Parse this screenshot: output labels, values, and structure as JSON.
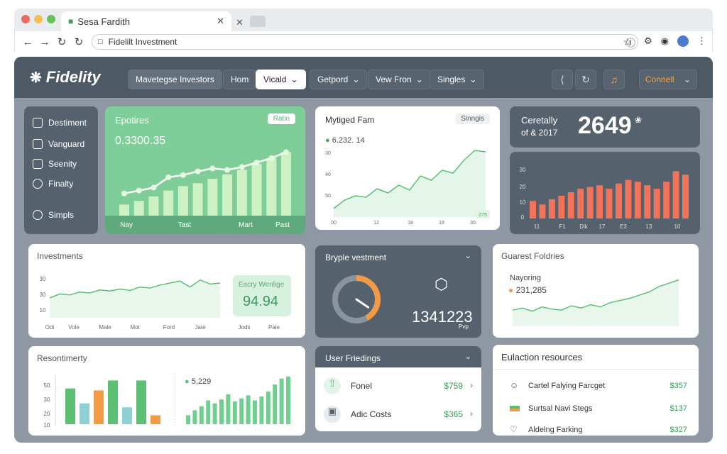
{
  "browser": {
    "tab_title": "Sesa Fardith",
    "url": "Fidelilt Investment",
    "colors": {
      "red": "#ed6a5e",
      "yellow": "#f5bf4f",
      "green": "#61c454"
    }
  },
  "header": {
    "logo": "Fidelity",
    "menu": [
      {
        "label": "Mavetegse Investors"
      },
      {
        "label": "Hom"
      },
      {
        "label": "Vicald"
      },
      {
        "label": "Getpord"
      },
      {
        "label": "Vew Fron"
      },
      {
        "label": "Singles"
      }
    ],
    "connect_label": "Connell"
  },
  "sidebar": {
    "items": [
      {
        "label": "Destiment",
        "icon": "calendar-icon"
      },
      {
        "label": "Vanguard",
        "icon": "bank-icon"
      },
      {
        "label": "Seenity",
        "icon": "briefcase-icon"
      },
      {
        "label": "Finalty",
        "icon": "link-icon"
      },
      {
        "label": "Simpls",
        "icon": "disk-icon"
      }
    ]
  },
  "equities": {
    "title": "Epotires",
    "badge": "Ratio",
    "value": "0.3300.35",
    "accent": "#7fce9a",
    "xlabels": [
      "Nay",
      "Tast",
      "Mart",
      "Past"
    ],
    "bars": [
      15,
      20,
      26,
      34,
      40,
      44,
      50,
      56,
      62,
      70,
      78,
      86
    ],
    "line": [
      30,
      34,
      38,
      52,
      55,
      60,
      64,
      62,
      66,
      72,
      78,
      86
    ]
  },
  "managed": {
    "title": "Mytiged Fam",
    "tag": "Sinngis",
    "value": "6.232. 14",
    "ylabels": [
      "30",
      "40",
      "50"
    ],
    "xlabels": [
      "00",
      "12",
      "18",
      "18",
      "30"
    ],
    "end_badge": "275",
    "line": [
      12,
      24,
      30,
      28,
      40,
      34,
      45,
      38,
      58,
      52,
      66,
      62,
      80,
      94,
      92
    ]
  },
  "correctly": {
    "label_line1": "Ceretally",
    "label_line2": "of & 2017",
    "value": "2649",
    "suffix": "❀"
  },
  "orange_chart": {
    "ylabels": [
      "30",
      "20",
      "10",
      "0"
    ],
    "xlabels": [
      "11",
      "F1",
      "Dik",
      "17",
      "E3",
      "13",
      "10"
    ],
    "values": [
      10,
      8,
      11,
      13,
      15,
      17,
      18,
      19,
      17,
      20,
      22,
      21,
      19,
      17,
      21,
      27,
      25
    ]
  },
  "investments": {
    "title": "Investments",
    "ylabels": [
      "30",
      "30",
      "10"
    ],
    "xlabels": [
      "Odi",
      "Vole",
      "Male",
      "Mot",
      "Ford",
      "Jate"
    ],
    "badge_title": "Eacry Wenlige",
    "badge_value": "94.94",
    "line": [
      40,
      48,
      46,
      52,
      50,
      56,
      54,
      58,
      55,
      62,
      60,
      66,
      70,
      74,
      62,
      76,
      68,
      70
    ]
  },
  "simple": {
    "title": "Bryple vestment",
    "value": "1341223",
    "sub": "Pvp",
    "gauge_fraction": 0.42
  },
  "guest": {
    "title": "Guarest Foldries",
    "label": "Nayoring",
    "value": "231,285",
    "line": [
      30,
      34,
      28,
      36,
      32,
      30,
      38,
      34,
      40,
      36,
      44,
      48,
      52,
      58,
      64,
      74,
      80,
      86
    ]
  },
  "resentment": {
    "title": "Resontimerty",
    "ylabels": [
      "50",
      "30",
      "20",
      "10"
    ],
    "bars": [
      {
        "v": 72,
        "c": "#5cbf74"
      },
      {
        "v": 42,
        "c": "#8fd0d4"
      },
      {
        "v": 68,
        "c": "#f29a46"
      },
      {
        "v": 88,
        "c": "#5cbf74"
      },
      {
        "v": 34,
        "c": "#8fd0d4"
      },
      {
        "v": 88,
        "c": "#5cbf74"
      },
      {
        "v": 18,
        "c": "#f29a46"
      }
    ],
    "right_value": "5,229",
    "right_bars": [
      18,
      28,
      36,
      48,
      42,
      50,
      60,
      46,
      52,
      58,
      48,
      56,
      66,
      80,
      92,
      96
    ]
  },
  "user_findings": {
    "title": "User Friedings",
    "rows": [
      {
        "label": "Fonel",
        "value": "$759"
      },
      {
        "label": "Adic Costs",
        "value": "$365"
      }
    ]
  },
  "education": {
    "title": "Eulaction resources",
    "rows": [
      {
        "label": "Cartel Falying Farcget",
        "value": "$357"
      },
      {
        "label": "Surtsal Navi Stegs",
        "value": "$137"
      },
      {
        "label": "Aldelng Farking",
        "value": "$327"
      }
    ]
  }
}
